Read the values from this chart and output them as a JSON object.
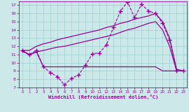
{
  "background_color": "#cde8e8",
  "grid_color": "#9dcfcf",
  "line_color": "#990099",
  "xlabel": "Windchill (Refroidissement éolien,°C)",
  "ylim": [
    7,
    17.5
  ],
  "xlim": [
    -0.5,
    23.5
  ],
  "yticks": [
    7,
    8,
    9,
    10,
    11,
    12,
    13,
    14,
    15,
    16,
    17
  ],
  "xticks": [
    0,
    1,
    2,
    3,
    4,
    5,
    6,
    7,
    8,
    9,
    10,
    11,
    12,
    13,
    14,
    15,
    16,
    17,
    18,
    19,
    20,
    21,
    22,
    23
  ],
  "series": [
    {
      "x": [
        0,
        1,
        2,
        3,
        4,
        5,
        6,
        7,
        8,
        9,
        10,
        11,
        12,
        13,
        14,
        15,
        16,
        17,
        18,
        19,
        20,
        21,
        22,
        23
      ],
      "y": [
        11.5,
        11.0,
        11.5,
        9.5,
        8.8,
        8.3,
        7.3,
        8.1,
        8.5,
        9.7,
        11.1,
        11.2,
        12.2,
        14.3,
        16.3,
        17.4,
        15.5,
        17.1,
        16.3,
        16.0,
        14.8,
        12.8,
        9.0,
        9.0
      ],
      "linestyle": "--",
      "marker": "+",
      "markersize": 4,
      "linewidth": 0.8
    },
    {
      "x": [
        0,
        1,
        2,
        3,
        4,
        5,
        6,
        7,
        8,
        9,
        10,
        11,
        12,
        13,
        14,
        15,
        16,
        17,
        18,
        19,
        20,
        21,
        22,
        23
      ],
      "y": [
        11.5,
        11.5,
        12.0,
        12.3,
        12.5,
        12.8,
        13.0,
        13.2,
        13.4,
        13.6,
        13.8,
        14.0,
        14.3,
        14.5,
        14.8,
        15.0,
        15.3,
        15.5,
        15.7,
        16.0,
        15.0,
        13.0,
        9.2,
        9.0
      ],
      "linestyle": "-",
      "marker": null,
      "markersize": 0,
      "linewidth": 0.9
    },
    {
      "x": [
        0,
        1,
        2,
        3,
        4,
        5,
        6,
        7,
        8,
        9,
        10,
        11,
        12,
        13,
        14,
        15,
        16,
        17,
        18,
        19,
        20,
        21,
        22,
        23
      ],
      "y": [
        11.4,
        11.0,
        11.3,
        11.5,
        11.7,
        11.9,
        12.0,
        12.2,
        12.4,
        12.6,
        12.8,
        13.0,
        13.2,
        13.4,
        13.7,
        14.0,
        14.2,
        14.5,
        14.8,
        15.0,
        14.0,
        12.0,
        9.0,
        9.0
      ],
      "linestyle": "-",
      "marker": null,
      "markersize": 0,
      "linewidth": 0.9
    },
    {
      "x": [
        0,
        1,
        2,
        3,
        4,
        5,
        6,
        7,
        8,
        9,
        10,
        11,
        12,
        13,
        14,
        15,
        16,
        17,
        18,
        19,
        20,
        21,
        22,
        23
      ],
      "y": [
        11.4,
        11.0,
        11.3,
        9.5,
        9.5,
        9.5,
        9.5,
        9.5,
        9.5,
        9.5,
        9.5,
        9.5,
        9.5,
        9.5,
        9.5,
        9.5,
        9.5,
        9.5,
        9.5,
        9.5,
        9.0,
        9.0,
        9.0,
        9.0
      ],
      "linestyle": "-",
      "marker": null,
      "markersize": 0,
      "linewidth": 0.9
    }
  ]
}
